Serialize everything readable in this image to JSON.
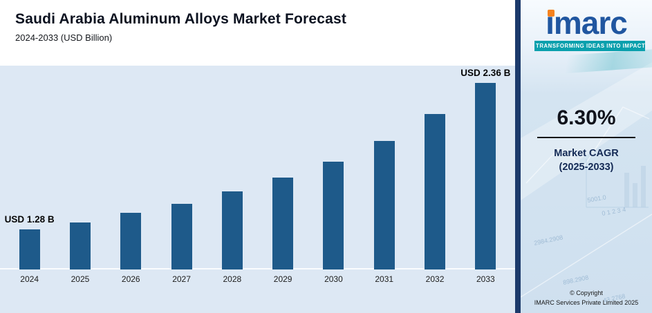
{
  "header": {
    "title": "Saudi Arabia Aluminum Alloys Market Forecast",
    "subtitle": "2024-2033 (USD Billion)"
  },
  "chart_data": {
    "type": "bar",
    "title": "Saudi Arabia Aluminum Alloys Market Forecast",
    "subtitle": "2024-2033 (USD Billion)",
    "unit": "USD Billion",
    "categories": [
      "2024",
      "2025",
      "2026",
      "2027",
      "2028",
      "2029",
      "2030",
      "2031",
      "2032",
      "2033"
    ],
    "values": [
      1.28,
      1.33,
      1.4,
      1.47,
      1.56,
      1.66,
      1.78,
      1.93,
      2.13,
      2.36
    ],
    "data_labels": [
      "USD 1.28 B",
      "",
      "",
      "",
      "",
      "",
      "",
      "",
      "",
      "USD 2.36 B"
    ],
    "labeled_values": {
      "2024": "USD 1.28 B",
      "2033": "USD 2.36 B"
    },
    "bar_color": "#1e5a8a",
    "background": "#dde8f4",
    "xlabel": "",
    "ylabel": "",
    "legend": "none",
    "grid": "off"
  },
  "sidebar": {
    "logo_text": "imarc",
    "logo_text_display": "ımarc",
    "tagline": "TRANSFORMING IDEAS INTO IMPACT",
    "cagr_value": "6.30%",
    "cagr_label_line1": "Market CAGR",
    "cagr_label_line2": "(2025-2033)",
    "copyright_line1": "© Copyright",
    "copyright_line2": "IMARC Services Private Limited 2025",
    "decor_numbers": [
      "5001.0",
      "0 1 2 3 4",
      "2984.2908",
      "898.2908",
      "43.2768"
    ],
    "colors": {
      "teal": "#0aa0ad",
      "navy": "#1c3a6b",
      "orange": "#f5821f",
      "logo_blue": "#2056a0"
    }
  }
}
